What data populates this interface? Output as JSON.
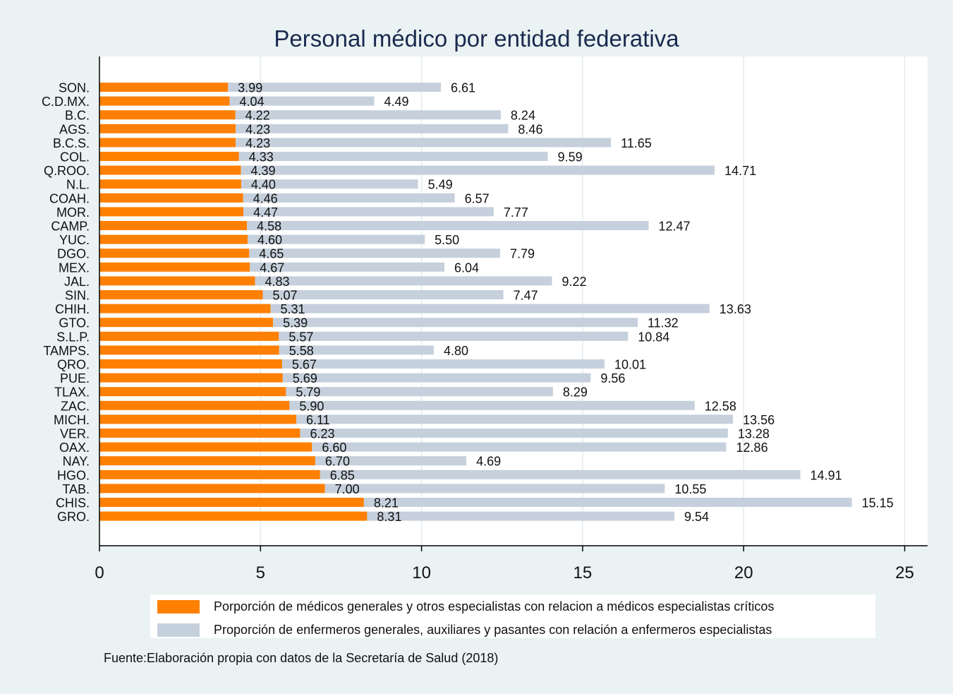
{
  "chart_data": {
    "type": "bar",
    "orientation": "horizontal",
    "stacked": true,
    "title": "Personal médico por entidad federativa",
    "source": "Fuente:Elaboración propia con datos de la Secretaría de Salud (2018)",
    "xlim": [
      0,
      25
    ],
    "xticks": [
      "0",
      "5",
      "10",
      "15",
      "20",
      "25"
    ],
    "xtick_values": [
      0,
      5,
      10,
      15,
      20,
      25
    ],
    "grid": true,
    "legend_placement": "bottom",
    "categories": [
      "SON.",
      "C.D.MX.",
      "B.C.",
      "AGS.",
      "B.C.S.",
      "COL.",
      "Q.ROO.",
      "N.L.",
      "COAH.",
      "MOR.",
      "CAMP.",
      "YUC.",
      "DGO.",
      "MEX.",
      "JAL.",
      "SIN.",
      "CHIH.",
      "GTO.",
      "S.L.P.",
      "TAMPS.",
      "QRO.",
      "PUE.",
      "TLAX.",
      "ZAC.",
      "MICH.",
      "VER.",
      "OAX.",
      "NAY.",
      "HGO.",
      "TAB.",
      "CHIS.",
      "GRO."
    ],
    "series": [
      {
        "name": "Porporción de médicos generales y otros especialistas con relacion a médicos especialistas críticos",
        "color": "#ff8000",
        "values": [
          3.99,
          4.04,
          4.22,
          4.23,
          4.23,
          4.33,
          4.39,
          4.4,
          4.46,
          4.47,
          4.58,
          4.6,
          4.65,
          4.67,
          4.83,
          5.07,
          5.31,
          5.39,
          5.57,
          5.58,
          5.67,
          5.69,
          5.79,
          5.9,
          6.11,
          6.23,
          6.6,
          6.7,
          6.85,
          7.0,
          8.21,
          8.31
        ],
        "labels": [
          "3.99",
          "4.04",
          "4.22",
          "4.23",
          "4.23",
          "4.33",
          "4.39",
          "4.40",
          "4.46",
          "4.47",
          "4.58",
          "4.60",
          "4.65",
          "4.67",
          "4.83",
          "5.07",
          "5.31",
          "5.39",
          "5.57",
          "5.58",
          "5.67",
          "5.69",
          "5.79",
          "5.90",
          "6.11",
          "6.23",
          "6.60",
          "6.70",
          "6.85",
          "7.00",
          "8.21",
          "8.31"
        ]
      },
      {
        "name": "Proporción de enfermeros generales, auxiliares y pasantes con relación a enfermeros especialistas",
        "color": "#c5d0dc",
        "values": [
          6.61,
          4.49,
          8.24,
          8.46,
          11.65,
          9.59,
          14.71,
          5.49,
          6.57,
          7.77,
          12.47,
          5.5,
          7.79,
          6.04,
          9.22,
          7.47,
          13.63,
          11.32,
          10.84,
          4.8,
          10.01,
          9.56,
          8.29,
          12.58,
          13.56,
          13.28,
          12.86,
          4.69,
          14.91,
          10.55,
          15.15,
          9.54
        ],
        "labels": [
          "6.61",
          "4.49",
          "8.24",
          "8.46",
          "11.65",
          "9.59",
          "14.71",
          "5.49",
          "6.57",
          "7.77",
          "12.47",
          "5.50",
          "7.79",
          "6.04",
          "9.22",
          "7.47",
          "13.63",
          "11.32",
          "10.84",
          "4.80",
          "10.01",
          "9.56",
          "8.29",
          "12.58",
          "13.56",
          "13.28",
          "12.86",
          "4.69",
          "14.91",
          "10.55",
          "15.15",
          "9.54"
        ]
      }
    ]
  }
}
